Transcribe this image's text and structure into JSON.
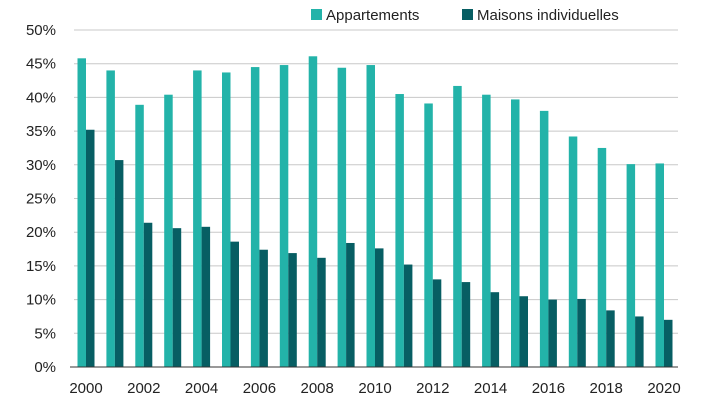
{
  "chart_data": {
    "type": "bar",
    "categories": [
      "2000",
      "2001",
      "2002",
      "2003",
      "2004",
      "2005",
      "2006",
      "2007",
      "2008",
      "2009",
      "2010",
      "2011",
      "2012",
      "2013",
      "2014",
      "2015",
      "2016",
      "2017",
      "2018",
      "2019",
      "2020"
    ],
    "x_tick_labels": [
      "2000",
      "2002",
      "2004",
      "2006",
      "2008",
      "2010",
      "2012",
      "2014",
      "2016",
      "2018",
      "2020"
    ],
    "y_tick_labels": [
      "0%",
      "5%",
      "10%",
      "15%",
      "20%",
      "25%",
      "30%",
      "35%",
      "40%",
      "45%",
      "50%"
    ],
    "ylim": [
      0,
      50
    ],
    "y_unit": "%",
    "grid": "horizontal",
    "legend_position": "top",
    "series": [
      {
        "name": "Appartements",
        "color": "#23b3a9",
        "values": [
          45.8,
          44.0,
          38.9,
          40.4,
          44.0,
          43.7,
          44.5,
          44.8,
          46.1,
          44.4,
          44.8,
          40.5,
          39.1,
          41.7,
          40.4,
          39.7,
          38.0,
          34.2,
          32.5,
          30.1,
          30.2
        ]
      },
      {
        "name": "Maisons individuelles",
        "color": "#075e63",
        "values": [
          35.2,
          30.7,
          21.4,
          20.6,
          20.8,
          18.6,
          17.4,
          16.9,
          16.2,
          18.4,
          17.6,
          15.2,
          13.0,
          12.6,
          11.1,
          10.5,
          10.0,
          10.1,
          8.4,
          7.5,
          7.0
        ]
      }
    ],
    "title": "",
    "xlabel": "",
    "ylabel": ""
  }
}
